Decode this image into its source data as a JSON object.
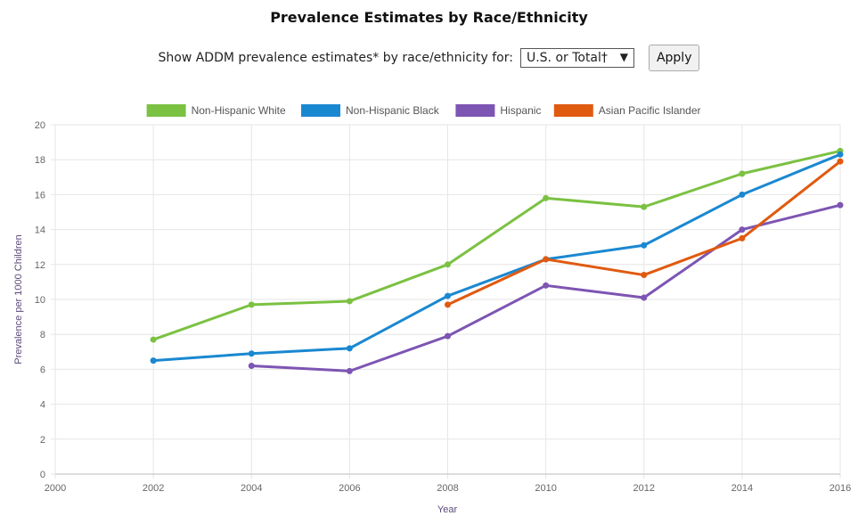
{
  "header": {
    "title": "Prevalence Estimates by Race/Ethnicity",
    "control_label": "Show ADDM prevalence estimates* by race/ethnicity for:",
    "select_value": "U.S. or Total†",
    "select_arrow_icon": "triangle-down-icon",
    "apply_label": "Apply"
  },
  "chart_data": {
    "type": "line",
    "title": "",
    "xlabel": "Year",
    "ylabel": "Prevalence per 1000 Children",
    "xlim": [
      2000,
      2016
    ],
    "ylim": [
      0,
      20
    ],
    "x_ticks": [
      "2000",
      "2002",
      "2004",
      "2006",
      "2008",
      "2010",
      "2012",
      "2014",
      "2016"
    ],
    "y_ticks": [
      "0",
      "2",
      "4",
      "6",
      "8",
      "10",
      "12",
      "14",
      "16",
      "18",
      "20"
    ],
    "grid": true,
    "legend_position": "top",
    "series": [
      {
        "name": "Non-Hispanic White",
        "color": "#7bc142",
        "points": [
          [
            2002,
            7.7
          ],
          [
            2004,
            9.7
          ],
          [
            2006,
            9.9
          ],
          [
            2008,
            12.0
          ],
          [
            2010,
            15.8
          ],
          [
            2012,
            15.3
          ],
          [
            2014,
            17.2
          ],
          [
            2016,
            18.5
          ]
        ]
      },
      {
        "name": "Non-Hispanic Black",
        "color": "#1a88d1",
        "points": [
          [
            2002,
            6.5
          ],
          [
            2004,
            6.9
          ],
          [
            2006,
            7.2
          ],
          [
            2008,
            10.2
          ],
          [
            2010,
            12.3
          ],
          [
            2012,
            13.1
          ],
          [
            2014,
            16.0
          ],
          [
            2016,
            18.3
          ]
        ]
      },
      {
        "name": "Hispanic",
        "color": "#7d55b3",
        "points": [
          [
            2004,
            6.2
          ],
          [
            2006,
            5.9
          ],
          [
            2008,
            7.9
          ],
          [
            2010,
            10.8
          ],
          [
            2012,
            10.1
          ],
          [
            2014,
            14.0
          ],
          [
            2016,
            15.4
          ]
        ]
      },
      {
        "name": "Asian Pacific Islander",
        "color": "#e05a10",
        "points": [
          [
            2008,
            9.7
          ],
          [
            2010,
            12.3
          ],
          [
            2012,
            11.4
          ],
          [
            2014,
            13.5
          ],
          [
            2016,
            17.9
          ]
        ]
      }
    ]
  }
}
